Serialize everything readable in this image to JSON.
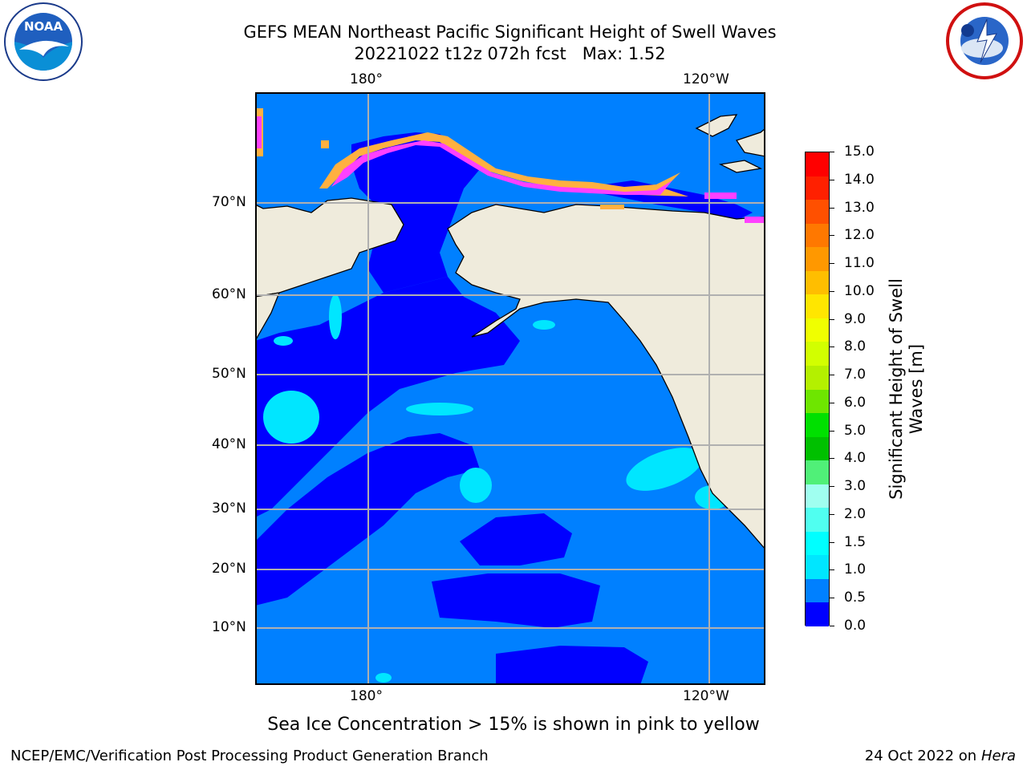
{
  "title_line1": "GEFS MEAN Northeast Pacific Significant Height of Swell Waves",
  "title_line2": "20221022 t12z 072h fcst   Max: 1.52",
  "logos": {
    "left": "noaa-logo",
    "right": "nws-logo"
  },
  "lon_ticks_top": [
    "180°",
    "120°W"
  ],
  "lon_ticks_bottom": [
    "180°",
    "120°W"
  ],
  "lat_ticks": [
    "70°N",
    "60°N",
    "50°N",
    "40°N",
    "30°N",
    "20°N",
    "10°N"
  ],
  "colorbar": {
    "label_line1": "Significant Height of Swell",
    "label_line2": "Waves [m]",
    "ticks": [
      "15.0",
      "14.0",
      "13.0",
      "12.0",
      "11.0",
      "10.0",
      "9.0",
      "8.0",
      "7.0",
      "6.0",
      "5.0",
      "4.0",
      "3.0",
      "2.0",
      "1.5",
      "1.0",
      "0.5",
      "0.0"
    ],
    "colors": [
      "#ff0000",
      "#ff2000",
      "#ff5000",
      "#ff7800",
      "#ff9800",
      "#ffbe00",
      "#ffe600",
      "#f0ff00",
      "#d2ff00",
      "#b4f000",
      "#6ee600",
      "#00e000",
      "#00c000",
      "#50f078",
      "#a0fff0",
      "#50fff0",
      "#00ffff",
      "#00e6ff",
      "#0080ff",
      "#0000ff"
    ]
  },
  "colors": {
    "land": "#efebdc",
    "ocean_low": "#0000ff",
    "ocean_mid": "#0080ff",
    "ocean_high": "#00e6ff",
    "ice_pink": "#ff40ff",
    "ice_orange": "#ffb040",
    "grid": "#b0b0b0"
  },
  "sea_ice_note": "Sea Ice Concentration > 15% is shown in pink to yellow",
  "footer_left": "NCEP/EMC/Verification Post Processing Product Generation Branch",
  "footer_right_date": "24 Oct 2022 on ",
  "footer_right_machine": "Hera"
}
